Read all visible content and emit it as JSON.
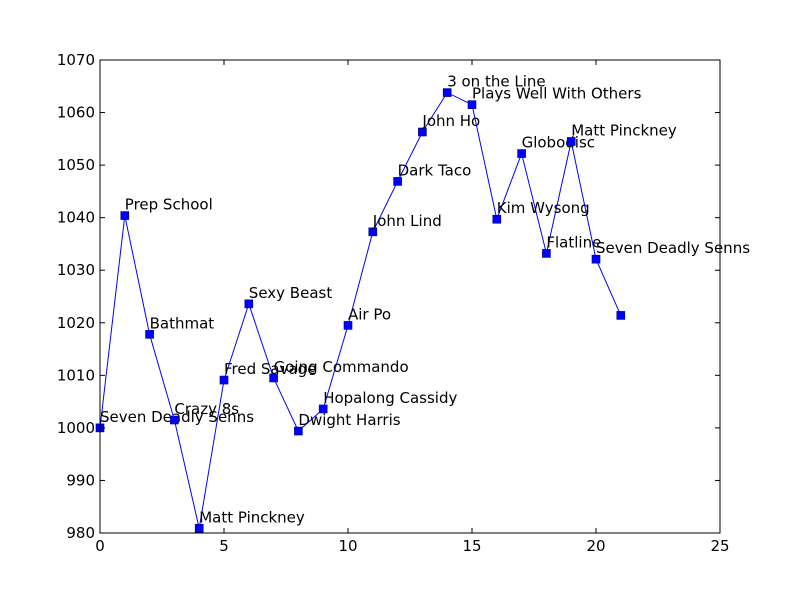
{
  "chart_data": {
    "type": "line",
    "title": "",
    "xlabel": "",
    "ylabel": "",
    "xlim": [
      0,
      25
    ],
    "ylim": [
      980,
      1070
    ],
    "x_ticks": [
      0,
      5,
      10,
      15,
      20,
      25
    ],
    "y_ticks": [
      980,
      990,
      1000,
      1010,
      1020,
      1030,
      1040,
      1050,
      1060,
      1070
    ],
    "x_tick_labels": [
      "0",
      "5",
      "10",
      "15",
      "20",
      "25"
    ],
    "y_tick_labels": [
      "980",
      "990",
      "1000",
      "1010",
      "1020",
      "1030",
      "1040",
      "1050",
      "1060",
      "1070"
    ],
    "grid": false,
    "line_color": "#0000ff",
    "marker": "square",
    "marker_color": "#0000ff",
    "points": [
      {
        "x": 0,
        "y": 1000,
        "label": "Seven Deadly Senns"
      },
      {
        "x": 1,
        "y": 1040.4,
        "label": "Prep School"
      },
      {
        "x": 2,
        "y": 1017.8,
        "label": "Bathmat"
      },
      {
        "x": 3,
        "y": 1001.5,
        "label": "Crazy 8s"
      },
      {
        "x": 4,
        "y": 980.9,
        "label": "Matt Pinckney"
      },
      {
        "x": 5,
        "y": 1009.1,
        "label": "Fred Savage"
      },
      {
        "x": 6,
        "y": 1023.6,
        "label": "Sexy Beast"
      },
      {
        "x": 7,
        "y": 1009.5,
        "label": "Going Commando"
      },
      {
        "x": 8,
        "y": 999.4,
        "label": "Dwight Harris"
      },
      {
        "x": 9,
        "y": 1003.6,
        "label": "Hopalong Cassidy"
      },
      {
        "x": 10,
        "y": 1019.5,
        "label": "Air Po"
      },
      {
        "x": 11,
        "y": 1037.3,
        "label": "John Lind"
      },
      {
        "x": 12,
        "y": 1046.9,
        "label": "Dark Taco"
      },
      {
        "x": 13,
        "y": 1056.3,
        "label": "John Ho"
      },
      {
        "x": 14,
        "y": 1063.8,
        "label": "3 on the Line"
      },
      {
        "x": 15,
        "y": 1061.5,
        "label": "Plays Well With Others"
      },
      {
        "x": 16,
        "y": 1039.7,
        "label": "Kim Wysong"
      },
      {
        "x": 17,
        "y": 1052.2,
        "label": "Globodisc"
      },
      {
        "x": 18,
        "y": 1033.2,
        "label": "Flatline"
      },
      {
        "x": 19,
        "y": 1054.5,
        "label": "Matt Pinckney"
      },
      {
        "x": 20,
        "y": 1032.1,
        "label": "Seven Deadly Senns"
      },
      {
        "x": 21,
        "y": 1021.4,
        "label": ""
      }
    ]
  }
}
